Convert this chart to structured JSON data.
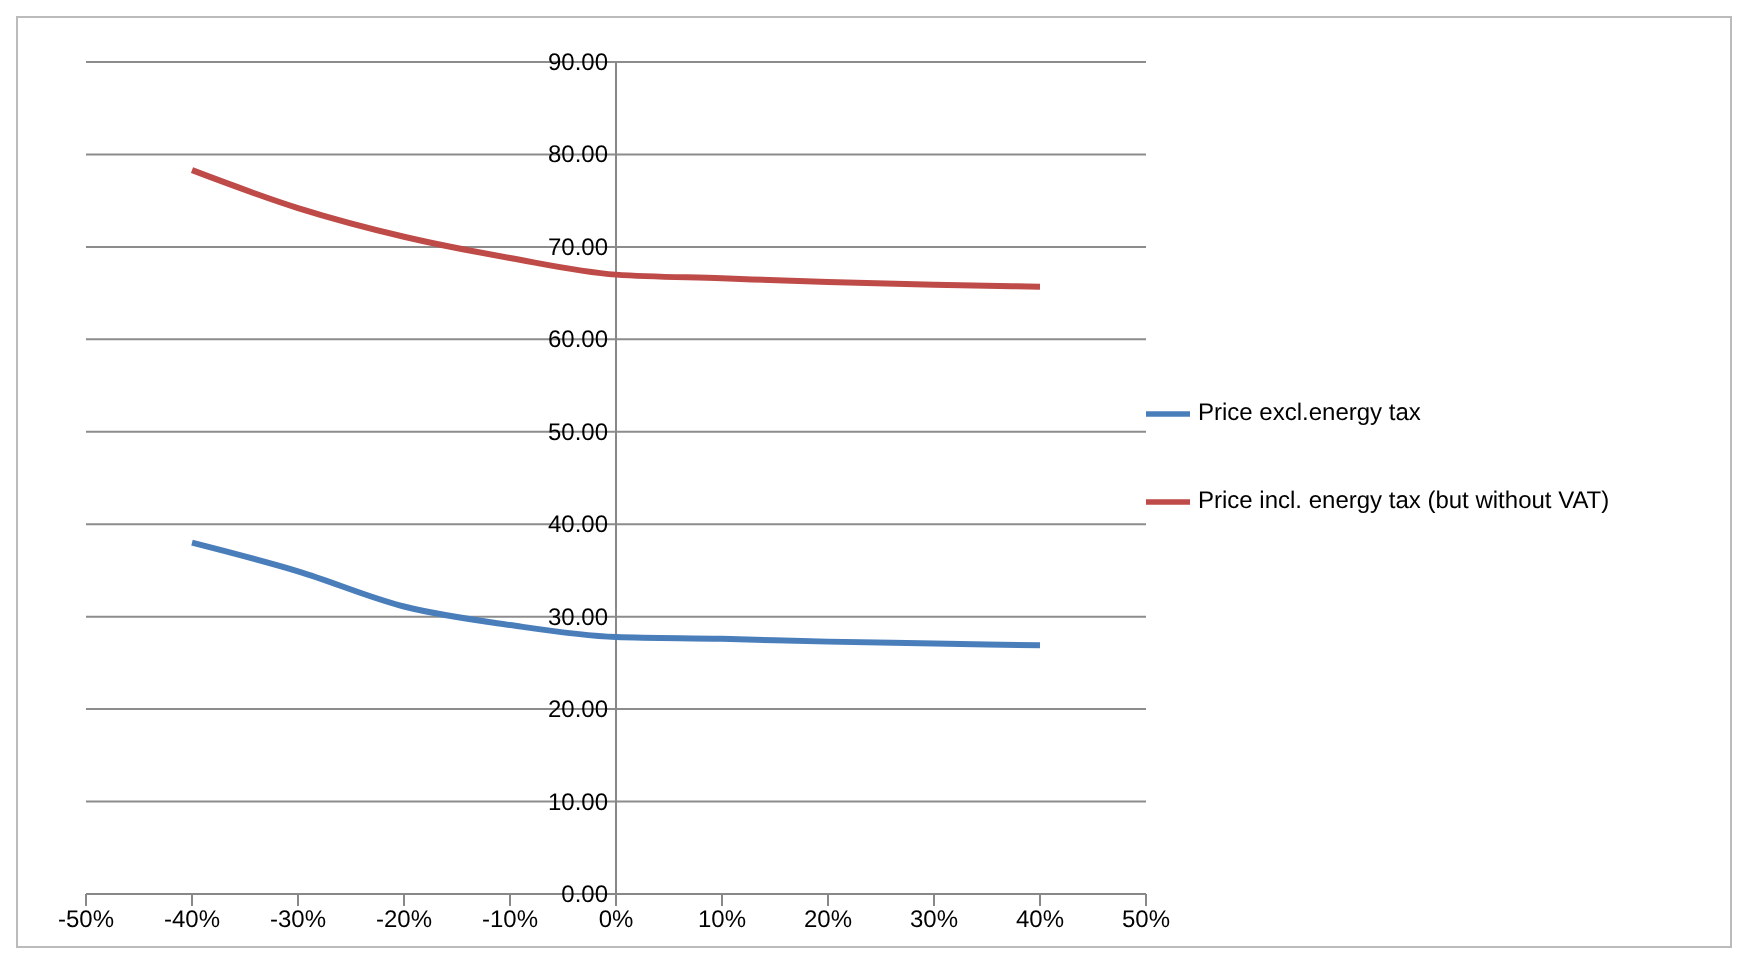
{
  "chart_data": {
    "type": "line",
    "x": [
      -40,
      -30,
      -20,
      -10,
      0,
      10,
      20,
      30,
      40
    ],
    "series": [
      {
        "name": "Price excl.energy tax",
        "color": "#4a7ebb",
        "values": [
          38.0,
          34.9,
          31.1,
          29.1,
          27.8,
          27.6,
          27.3,
          27.1,
          26.9
        ]
      },
      {
        "name": "Price incl. energy tax (but without VAT)",
        "color": "#be4b48",
        "values": [
          78.3,
          74.2,
          71.1,
          68.8,
          67.0,
          66.6,
          66.2,
          65.9,
          65.7
        ]
      }
    ],
    "xlim": [
      -50,
      50
    ],
    "xticks": [
      {
        "value": -50,
        "label": "-50%"
      },
      {
        "value": -40,
        "label": "-40%"
      },
      {
        "value": -30,
        "label": "-30%"
      },
      {
        "value": -20,
        "label": "-20%"
      },
      {
        "value": -10,
        "label": "-10%"
      },
      {
        "value": 0,
        "label": "0%"
      },
      {
        "value": 10,
        "label": "10%"
      },
      {
        "value": 20,
        "label": "20%"
      },
      {
        "value": 30,
        "label": "30%"
      },
      {
        "value": 40,
        "label": "40%"
      },
      {
        "value": 50,
        "label": "50%"
      }
    ],
    "ylim": [
      0,
      90
    ],
    "yticks": [
      {
        "value": 0,
        "label": "0.00"
      },
      {
        "value": 10,
        "label": "10.00"
      },
      {
        "value": 20,
        "label": "20.00"
      },
      {
        "value": 30,
        "label": "30.00"
      },
      {
        "value": 40,
        "label": "40.00"
      },
      {
        "value": 50,
        "label": "50.00"
      },
      {
        "value": 60,
        "label": "60.00"
      },
      {
        "value": 70,
        "label": "70.00"
      },
      {
        "value": 80,
        "label": "80.00"
      },
      {
        "value": 90,
        "label": "90.00"
      }
    ],
    "grid": "y",
    "legend": "right",
    "marker": "none",
    "line_style": "solid"
  }
}
